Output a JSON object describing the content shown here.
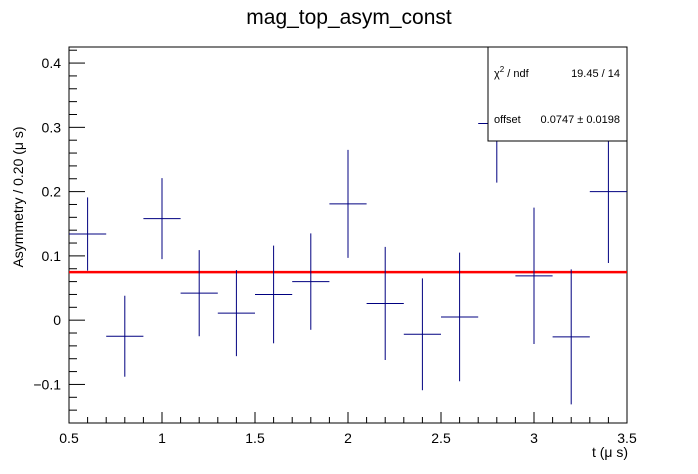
{
  "chart_data": {
    "type": "scatter",
    "title": "mag_top_asym_const",
    "xlabel": "t (μ s)",
    "ylabel": "Asymmetry / 0.20 (μ s)",
    "xlim": [
      0.5,
      3.5
    ],
    "ylim": [
      -0.16,
      0.425
    ],
    "x_ticks": [
      0.5,
      1,
      1.5,
      2,
      2.5,
      3,
      3.5
    ],
    "x_tick_labels": [
      "0.5",
      "1",
      "1.5",
      "2",
      "2.5",
      "3",
      "3.5"
    ],
    "y_ticks": [
      -0.1,
      0,
      0.1,
      0.2,
      0.3,
      0.4
    ],
    "y_tick_labels": [
      "−0.1",
      "0",
      "0.1",
      "0.2",
      "0.3",
      "0.4"
    ],
    "grid": false,
    "series": [
      {
        "color": "#000080",
        "x": [
          0.6,
          0.8,
          1.0,
          1.2,
          1.4,
          1.6,
          1.8,
          2.0,
          2.2,
          2.4,
          2.6,
          2.8,
          3.0,
          3.2,
          3.4
        ],
        "x_err": 0.1,
        "y": [
          0.134,
          -0.025,
          0.158,
          0.042,
          0.011,
          0.04,
          0.06,
          0.181,
          0.026,
          -0.022,
          0.005,
          0.306,
          0.069,
          -0.026,
          0.2
        ],
        "y_err": [
          0.057,
          0.063,
          0.063,
          0.067,
          0.067,
          0.076,
          0.075,
          0.084,
          0.088,
          0.087,
          0.1,
          0.092,
          0.106,
          0.105,
          0.111
        ]
      }
    ],
    "fit": {
      "type": "constant",
      "value": 0.0747,
      "color": "#ff0000"
    },
    "stats_box": {
      "chi2_label": "χ",
      "chi2_sup": "2",
      "chi2_suffix": " / ndf",
      "chi2_value": "19.45 / 14",
      "offset_label": "offset",
      "offset_value": "0.0747 ± 0.0198"
    }
  }
}
